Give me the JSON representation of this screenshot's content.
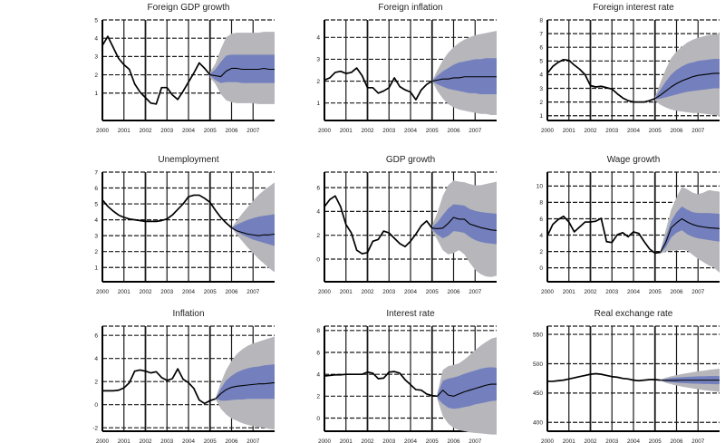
{
  "figure": {
    "background": "#ffffff"
  },
  "colors": {
    "outer_band": "#b6b6bb",
    "inner_band": "#7480bd",
    "history_line": "#000000",
    "forecast_line": "#000000",
    "grid": "#1a1a1a",
    "axis": "#000000",
    "tick_text": "#1a1a1a"
  },
  "x_axis": {
    "ticks": [
      "2000",
      "2001",
      "2002",
      "2003",
      "2004",
      "2005",
      "2006",
      "2007"
    ]
  },
  "chart_data": [
    {
      "type": "line",
      "title": "Foreign GDP growth",
      "xlim": [
        2000,
        2008
      ],
      "ylim": [
        -0.5,
        5
      ],
      "yticks": [
        1,
        2,
        3,
        4,
        5
      ],
      "history": {
        "x_start": 2000,
        "x_step": 0.25,
        "y": [
          3.6,
          4.1,
          3.5,
          2.9,
          2.55,
          2.3,
          1.5,
          1.05,
          0.75,
          0.45,
          0.4,
          1.3,
          1.3,
          0.9,
          0.65,
          1.1,
          1.6,
          2.1,
          2.65,
          2.35,
          2.0
        ]
      },
      "forecast": {
        "x_start": 2005,
        "x_step": 0.25,
        "center": [
          2.0,
          1.95,
          1.9,
          2.2,
          2.35,
          2.35,
          2.3,
          2.3,
          2.3,
          2.3,
          2.35,
          2.3,
          2.3
        ],
        "inner_hi": [
          2.05,
          2.3,
          2.7,
          3.05,
          3.1,
          3.1,
          3.1,
          3.1,
          3.1,
          3.1,
          3.1,
          3.1,
          3.1
        ],
        "inner_lo": [
          1.95,
          1.7,
          1.55,
          1.6,
          1.6,
          1.6,
          1.55,
          1.55,
          1.55,
          1.55,
          1.55,
          1.55,
          1.55
        ],
        "outer_hi": [
          2.15,
          2.6,
          3.4,
          4.05,
          4.25,
          4.3,
          4.3,
          4.3,
          4.3,
          4.3,
          4.35,
          4.35,
          4.35
        ],
        "outer_lo": [
          1.85,
          1.5,
          0.95,
          0.6,
          0.5,
          0.45,
          0.45,
          0.45,
          0.45,
          0.4,
          0.4,
          0.4,
          0.4
        ]
      }
    },
    {
      "type": "line",
      "title": "Foreign inflation",
      "xlim": [
        2000,
        2008
      ],
      "ylim": [
        0.2,
        4.8
      ],
      "yticks": [
        1,
        2,
        3,
        4
      ],
      "history": {
        "x_start": 2000,
        "x_step": 0.25,
        "y": [
          2.05,
          2.15,
          2.4,
          2.45,
          2.35,
          2.4,
          2.6,
          2.25,
          1.7,
          1.7,
          1.45,
          1.55,
          1.7,
          2.15,
          1.75,
          1.6,
          1.5,
          1.15,
          1.6,
          1.85,
          2.0
        ]
      },
      "forecast": {
        "x_start": 2005,
        "x_step": 0.25,
        "center": [
          2.0,
          2.05,
          2.1,
          2.1,
          2.15,
          2.15,
          2.2,
          2.2,
          2.2,
          2.2,
          2.2,
          2.2,
          2.2
        ],
        "inner_hi": [
          2.0,
          2.25,
          2.45,
          2.6,
          2.75,
          2.85,
          2.9,
          2.95,
          3.0,
          3.0,
          3.05,
          3.05,
          3.05
        ],
        "inner_lo": [
          2.0,
          1.85,
          1.75,
          1.65,
          1.6,
          1.55,
          1.5,
          1.45,
          1.45,
          1.4,
          1.4,
          1.4,
          1.4
        ],
        "outer_hi": [
          2.0,
          2.5,
          2.95,
          3.3,
          3.55,
          3.75,
          3.9,
          4.0,
          4.1,
          4.15,
          4.2,
          4.25,
          4.3
        ],
        "outer_lo": [
          2.0,
          1.55,
          1.2,
          0.95,
          0.8,
          0.7,
          0.65,
          0.6,
          0.55,
          0.5,
          0.5,
          0.45,
          0.45
        ]
      }
    },
    {
      "type": "line",
      "title": "Foreign interest rate",
      "xlim": [
        2000,
        2008
      ],
      "ylim": [
        0.65,
        8
      ],
      "yticks": [
        1,
        2,
        3,
        4,
        5,
        6,
        7,
        8
      ],
      "history": {
        "x_start": 2000,
        "x_step": 0.25,
        "y": [
          4.1,
          4.6,
          4.9,
          5.1,
          5.05,
          4.7,
          4.4,
          4.0,
          3.2,
          3.1,
          3.15,
          3.05,
          2.95,
          2.6,
          2.3,
          2.1,
          2.0,
          2.0,
          2.0,
          2.1,
          2.25
        ]
      },
      "forecast": {
        "x_start": 2005,
        "x_step": 0.25,
        "center": [
          2.25,
          2.5,
          2.8,
          3.1,
          3.35,
          3.55,
          3.7,
          3.85,
          3.95,
          4.0,
          4.05,
          4.1,
          4.1
        ],
        "inner_hi": [
          2.3,
          2.9,
          3.5,
          4.0,
          4.35,
          4.6,
          4.8,
          4.9,
          5.0,
          5.05,
          5.1,
          5.15,
          5.15
        ],
        "inner_lo": [
          2.2,
          2.25,
          2.35,
          2.45,
          2.55,
          2.65,
          2.75,
          2.8,
          2.85,
          2.9,
          2.95,
          3.0,
          3.0
        ],
        "outer_hi": [
          2.4,
          3.4,
          4.4,
          5.2,
          5.7,
          6.05,
          6.35,
          6.55,
          6.7,
          6.8,
          6.9,
          6.95,
          7.0
        ],
        "outer_lo": [
          2.1,
          1.8,
          1.6,
          1.45,
          1.35,
          1.3,
          1.25,
          1.2,
          1.2,
          1.15,
          1.1,
          1.05,
          1.0
        ]
      }
    },
    {
      "type": "line",
      "title": "Unemployment",
      "xlim": [
        2000,
        2008
      ],
      "ylim": [
        0.1,
        7
      ],
      "yticks": [
        1,
        2,
        3,
        4,
        5,
        6,
        7
      ],
      "history": {
        "x_start": 2000,
        "x_step": 0.25,
        "y": [
          5.25,
          4.85,
          4.55,
          4.3,
          4.15,
          4.05,
          4.0,
          3.95,
          3.9,
          3.9,
          3.9,
          3.95,
          4.05,
          4.3,
          4.65,
          5.0,
          5.45,
          5.55,
          5.55,
          5.35,
          5.1,
          4.6,
          4.15,
          3.8,
          3.5
        ]
      },
      "forecast": {
        "x_start": 2006,
        "x_step": 0.25,
        "center": [
          3.5,
          3.3,
          3.2,
          3.1,
          3.05,
          3.0,
          3.05,
          3.05,
          3.1
        ],
        "inner_hi": [
          3.5,
          3.7,
          3.85,
          4.0,
          4.1,
          4.2,
          4.25,
          4.3,
          4.35
        ],
        "inner_lo": [
          3.5,
          3.25,
          3.05,
          2.9,
          2.75,
          2.65,
          2.55,
          2.45,
          2.35
        ],
        "outer_hi": [
          3.5,
          3.95,
          4.4,
          4.8,
          5.2,
          5.55,
          5.85,
          6.1,
          6.35
        ],
        "outer_lo": [
          3.5,
          3.05,
          2.65,
          2.25,
          1.9,
          1.55,
          1.25,
          0.95,
          0.7
        ]
      }
    },
    {
      "type": "line",
      "title": "GDP growth",
      "xlim": [
        2000,
        2008
      ],
      "ylim": [
        -1.9,
        7.3
      ],
      "yticks": [
        0,
        2,
        4,
        6
      ],
      "history": {
        "x_start": 2000,
        "x_step": 0.25,
        "y": [
          4.4,
          5.0,
          5.3,
          4.4,
          2.9,
          2.2,
          0.75,
          0.45,
          0.55,
          1.5,
          1.65,
          2.35,
          2.2,
          1.75,
          1.3,
          1.05,
          1.5,
          2.1,
          2.8,
          3.2,
          2.6
        ]
      },
      "forecast": {
        "x_start": 2005,
        "x_step": 0.25,
        "center": [
          2.6,
          2.55,
          2.6,
          3.0,
          3.5,
          3.35,
          3.35,
          2.95,
          2.8,
          2.65,
          2.55,
          2.45,
          2.4
        ],
        "inner_hi": [
          2.7,
          3.1,
          3.7,
          4.25,
          4.6,
          4.55,
          4.5,
          4.2,
          4.05,
          3.95,
          3.9,
          3.85,
          3.8
        ],
        "inner_lo": [
          2.5,
          2.05,
          1.75,
          1.95,
          2.35,
          2.3,
          2.2,
          1.85,
          1.6,
          1.45,
          1.35,
          1.3,
          1.25
        ],
        "outer_hi": [
          2.8,
          3.9,
          5.3,
          6.2,
          6.6,
          6.5,
          6.45,
          6.3,
          6.2,
          6.2,
          6.3,
          6.4,
          6.5
        ],
        "outer_lo": [
          2.4,
          1.6,
          0.75,
          0.4,
          0.5,
          0.75,
          0.4,
          -0.3,
          -0.9,
          -1.25,
          -1.45,
          -1.5,
          -1.4
        ]
      }
    },
    {
      "type": "line",
      "title": "Wage growth",
      "xlim": [
        2000,
        2008
      ],
      "ylim": [
        -1.7,
        11.7
      ],
      "yticks": [
        0,
        2,
        4,
        6,
        8,
        10
      ],
      "history": {
        "x_start": 2000,
        "x_step": 0.25,
        "y": [
          3.9,
          5.3,
          5.9,
          6.3,
          5.6,
          4.4,
          5.0,
          5.6,
          5.6,
          5.7,
          6.05,
          3.2,
          3.1,
          4.05,
          4.3,
          3.8,
          4.4,
          4.2,
          3.2,
          2.3,
          1.8,
          1.9
        ]
      },
      "forecast": {
        "x_start": 2005.25,
        "x_step": 0.25,
        "center": [
          1.9,
          3.1,
          4.9,
          5.5,
          6.0,
          5.6,
          5.3,
          5.1,
          5.0,
          4.9,
          4.85,
          4.8
        ],
        "inner_hi": [
          2.0,
          3.7,
          5.7,
          6.8,
          7.5,
          7.1,
          6.8,
          6.7,
          6.7,
          6.7,
          6.65,
          6.6
        ],
        "inner_lo": [
          1.8,
          2.5,
          3.7,
          4.3,
          4.6,
          4.1,
          3.8,
          3.6,
          3.5,
          3.4,
          3.3,
          3.2
        ],
        "outer_hi": [
          2.1,
          4.6,
          7.1,
          8.6,
          9.9,
          9.6,
          9.2,
          9.0,
          9.2,
          9.5,
          9.4,
          9.3
        ],
        "outer_lo": [
          1.75,
          2.0,
          2.1,
          2.1,
          2.2,
          2.1,
          1.6,
          1.1,
          0.7,
          0.3,
          0.0,
          -0.6
        ]
      }
    },
    {
      "type": "line",
      "title": "Inflation",
      "xlim": [
        2000,
        2008
      ],
      "ylim": [
        -2.3,
        6.8
      ],
      "yticks": [
        -2,
        0,
        2,
        4,
        6
      ],
      "history": {
        "x_start": 2000,
        "x_step": 0.25,
        "y": [
          1.2,
          1.2,
          1.2,
          1.25,
          1.45,
          1.9,
          2.9,
          3.0,
          2.9,
          2.75,
          2.85,
          2.35,
          2.1,
          2.25,
          3.1,
          2.2,
          1.9,
          1.4,
          0.4,
          0.1,
          0.35,
          0.5
        ]
      },
      "forecast": {
        "x_start": 2005.25,
        "x_step": 0.25,
        "center": [
          0.5,
          0.95,
          1.3,
          1.5,
          1.6,
          1.65,
          1.7,
          1.75,
          1.8,
          1.8,
          1.85,
          1.9
        ],
        "inner_hi": [
          0.5,
          1.4,
          2.1,
          2.5,
          2.8,
          3.0,
          3.15,
          3.25,
          3.3,
          3.4,
          3.45,
          3.5
        ],
        "inner_lo": [
          0.5,
          0.35,
          0.35,
          0.4,
          0.45,
          0.45,
          0.5,
          0.5,
          0.5,
          0.5,
          0.5,
          0.5
        ],
        "outer_hi": [
          0.5,
          1.9,
          3.0,
          3.8,
          4.4,
          4.8,
          5.1,
          5.3,
          5.45,
          5.6,
          5.75,
          5.9
        ],
        "outer_lo": [
          0.5,
          -0.35,
          -0.85,
          -1.2,
          -1.4,
          -1.6,
          -1.75,
          -1.85,
          -1.95,
          -2.0,
          -2.1,
          -2.15
        ]
      }
    },
    {
      "type": "line",
      "title": "Interest rate",
      "xlim": [
        2000,
        2008
      ],
      "ylim": [
        -1.2,
        8.4
      ],
      "yticks": [
        0,
        2,
        4,
        6,
        8
      ],
      "history": {
        "x_start": 2000,
        "x_step": 0.25,
        "y": [
          3.85,
          3.9,
          3.95,
          3.95,
          4.0,
          4.0,
          4.0,
          4.0,
          4.2,
          4.1,
          3.6,
          3.65,
          4.2,
          4.25,
          4.1,
          3.5,
          3.05,
          2.6,
          2.55,
          2.2,
          2.05,
          2.0
        ]
      },
      "forecast": {
        "x_start": 2005.25,
        "x_step": 0.25,
        "center": [
          2.0,
          2.55,
          2.1,
          2.0,
          2.2,
          2.4,
          2.55,
          2.7,
          2.85,
          3.0,
          3.1,
          3.1
        ],
        "inner_hi": [
          2.2,
          3.4,
          3.6,
          3.7,
          3.85,
          4.05,
          4.2,
          4.35,
          4.5,
          4.6,
          4.65,
          4.6
        ],
        "inner_lo": [
          1.8,
          1.3,
          0.95,
          0.85,
          0.9,
          1.0,
          1.1,
          1.25,
          1.35,
          1.45,
          1.55,
          1.6
        ],
        "outer_hi": [
          2.3,
          4.4,
          4.75,
          4.85,
          5.0,
          5.35,
          5.75,
          6.2,
          6.6,
          6.95,
          7.25,
          7.4
        ],
        "outer_lo": [
          1.7,
          0.2,
          -0.5,
          -0.9,
          -1.1,
          -1.2,
          -1.3,
          -1.35,
          -1.4,
          -1.45,
          -1.5,
          -1.5
        ]
      }
    },
    {
      "type": "line",
      "title": "Real exchange rate",
      "xlim": [
        2000,
        2008
      ],
      "ylim": [
        385,
        564
      ],
      "yticks": [
        400,
        450,
        500,
        550
      ],
      "history": {
        "x_start": 2000,
        "x_step": 0.25,
        "y": [
          470,
          470,
          471,
          472,
          474,
          476,
          478,
          480,
          482,
          483,
          482,
          480,
          478,
          477,
          475,
          474,
          472,
          471,
          472,
          473,
          473,
          472
        ]
      },
      "forecast": {
        "x_start": 2005.25,
        "x_step": 0.25,
        "center": [
          472,
          471.5,
          471.5,
          471.5,
          472,
          472,
          472,
          472,
          472,
          472,
          472,
          472
        ],
        "inner_hi": [
          472.5,
          474,
          475.5,
          476.5,
          477,
          477.5,
          478,
          478.5,
          478.5,
          479,
          479,
          479
        ],
        "inner_lo": [
          471.5,
          469.5,
          468.5,
          467.5,
          467,
          466.5,
          466,
          466,
          465.5,
          465.5,
          465,
          465
        ],
        "outer_hi": [
          473,
          476,
          478.5,
          480.5,
          482.5,
          484,
          485.5,
          487,
          488,
          489.5,
          490.5,
          491.5
        ],
        "outer_lo": [
          471,
          467.5,
          465,
          463,
          461,
          459.5,
          458,
          456.5,
          455,
          454,
          453,
          452
        ]
      }
    }
  ]
}
